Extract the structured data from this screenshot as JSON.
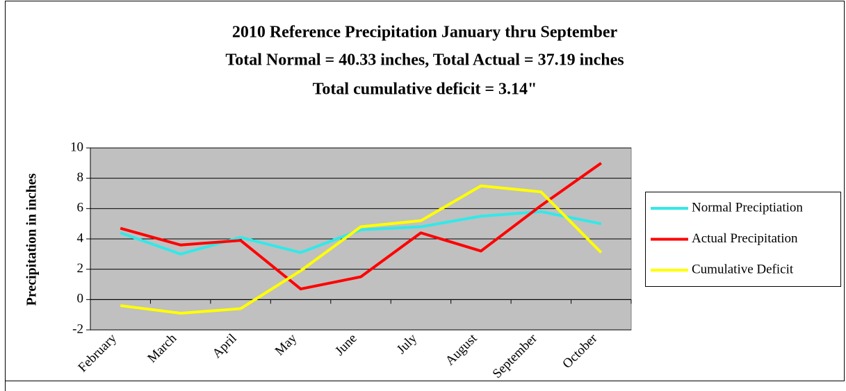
{
  "chart_data": {
    "type": "line",
    "title": "2010 Reference Precipitation January thru September",
    "subtitle": "Total Normal = 40.33 inches, Total Actual = 37.19 inches",
    "subtitle2": "Total cumulative deficit = 3.14\"",
    "y_label": "Precipitation in inches",
    "categories": [
      "February",
      "March",
      "April",
      "May",
      "June",
      "July",
      "August",
      "September",
      "October"
    ],
    "series": [
      {
        "name": "Normal Preciptiation",
        "color": "#33e8e8",
        "values": [
          4.4,
          3.0,
          4.1,
          3.1,
          4.6,
          4.8,
          5.5,
          5.8,
          5.0
        ]
      },
      {
        "name": "Actual Precipitation",
        "color": "#ff0000",
        "values": [
          4.7,
          3.6,
          3.9,
          0.7,
          1.5,
          4.4,
          3.2,
          6.2,
          9.0
        ]
      },
      {
        "name": "Cumulative Deficit",
        "color": "#ffff00",
        "values": [
          -0.4,
          -0.9,
          -0.6,
          1.9,
          4.8,
          5.2,
          7.5,
          7.1,
          3.1
        ]
      }
    ],
    "ylim": [
      -2,
      10
    ],
    "yticks": [
      -2,
      0,
      2,
      4,
      6,
      8,
      10
    ],
    "grid": true,
    "legend": "right"
  }
}
